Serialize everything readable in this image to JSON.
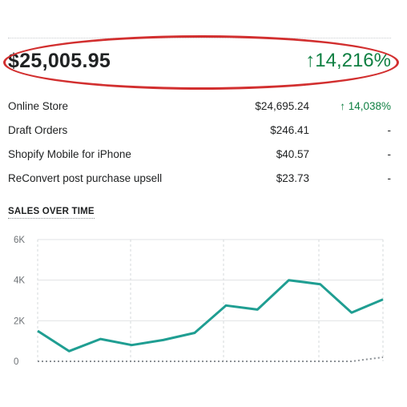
{
  "summary": {
    "total": "$25,005.95",
    "total_change": "↑14,216%"
  },
  "channels": [
    {
      "name": "Online Store",
      "amount": "$24,695.24",
      "change": "↑ 14,038%",
      "trend": "up"
    },
    {
      "name": "Draft Orders",
      "amount": "$246.41",
      "change": "-",
      "trend": "none"
    },
    {
      "name": "Shopify Mobile for iPhone",
      "amount": "$40.57",
      "change": "-",
      "trend": "none"
    },
    {
      "name": "ReConvert post purchase upsell",
      "amount": "$23.73",
      "change": "-",
      "trend": "none"
    }
  ],
  "section_title": "SALES OVER TIME",
  "colors": {
    "current_series": "#1f9e92",
    "previous_series": "#8c9196",
    "positive": "#108043",
    "highlight": "#d22f2f"
  },
  "chart_data": {
    "type": "line",
    "y_ticks": [
      "6K",
      "4K",
      "2K",
      "0"
    ],
    "ylim": [
      0,
      6000
    ],
    "grid": true,
    "series": [
      {
        "values": [
          1500,
          500,
          1100,
          800,
          1050,
          1400,
          2750,
          2550,
          4000,
          3800,
          2400,
          3050
        ]
      },
      {
        "values": [
          0,
          0,
          0,
          0,
          0,
          0,
          0,
          0,
          0,
          0,
          0,
          200
        ],
        "dashed": true
      }
    ]
  }
}
